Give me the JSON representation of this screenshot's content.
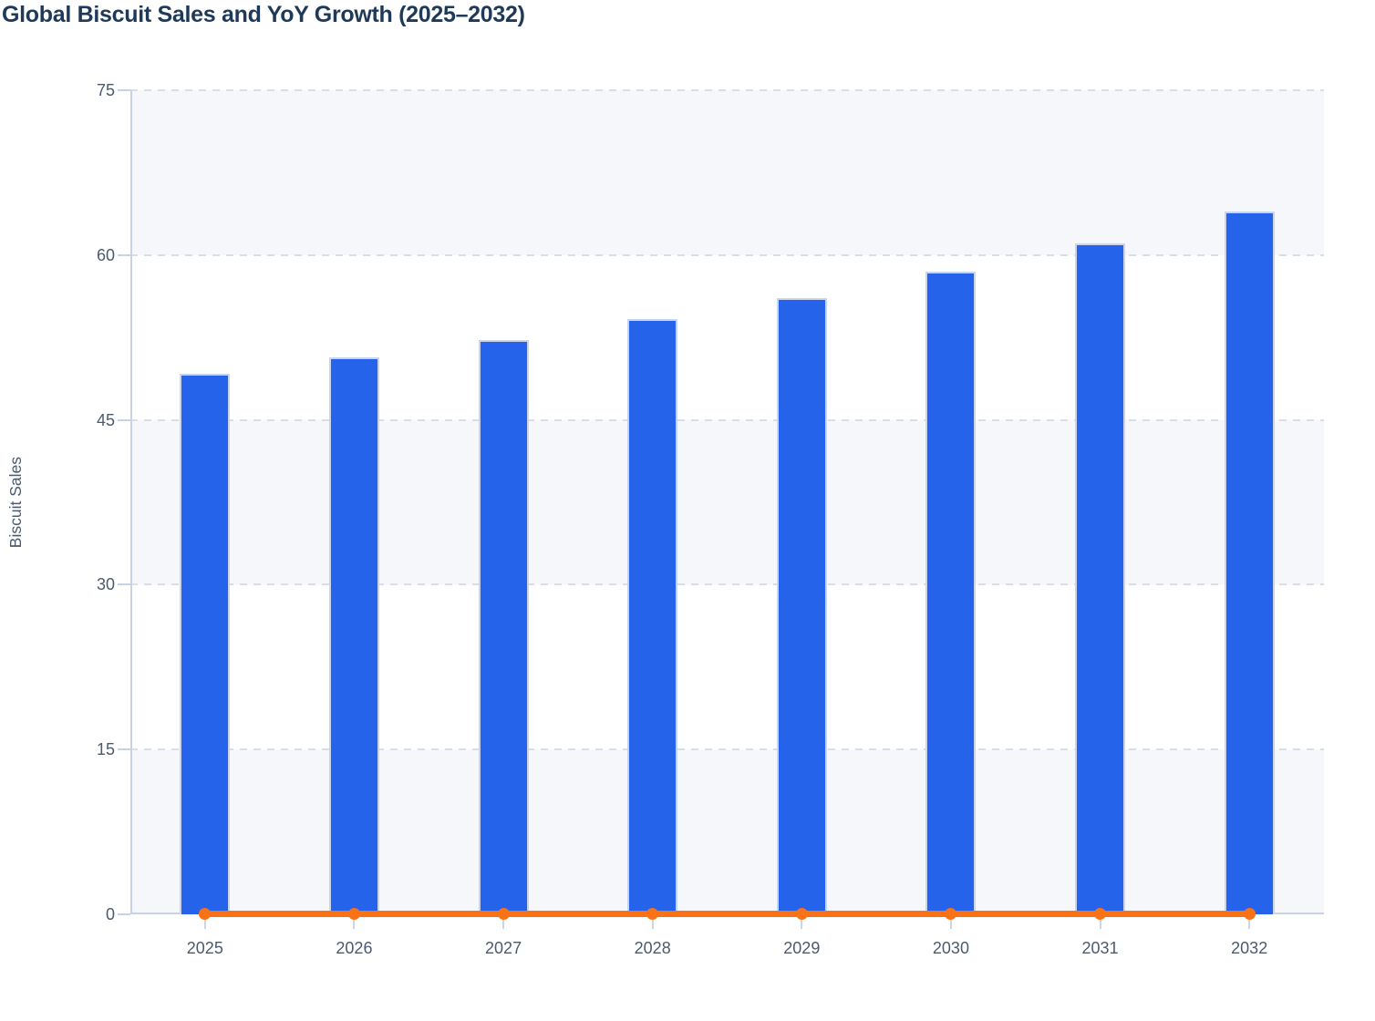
{
  "title": "Global Biscuit Sales and YoY Growth (2025–2032)",
  "y_axis": {
    "label": "Biscuit Sales",
    "tick_labels": [
      "75",
      "60",
      "45",
      "30",
      "15",
      "0"
    ]
  },
  "x_axis": {
    "tick_labels": [
      "2025",
      "2026",
      "2027",
      "2028",
      "2029",
      "2030",
      "2031",
      "2032"
    ]
  },
  "colors": {
    "bar_fill": "#2563eb",
    "bar_border": "#c9d4f2",
    "line": "#f97316",
    "title_text": "#1f3a58",
    "axis_text": "#4c5a6e",
    "axis_line": "#c8d2e4",
    "gridline": "#d9dde5",
    "band_fill": "#f6f7fa",
    "background": "#ffffff"
  },
  "chart_data": {
    "type": "bar",
    "title": "Global Biscuit Sales and YoY Growth (2025–2032)",
    "categories": [
      "2025",
      "2026",
      "2027",
      "2028",
      "2029",
      "2030",
      "2031",
      "2032"
    ],
    "series": [
      {
        "name": "Biscuit Sales",
        "type": "bar",
        "color": "#2563eb",
        "values": [
          49.2,
          50.7,
          52.3,
          54.2,
          56.1,
          58.5,
          61.1,
          64.0
        ]
      },
      {
        "name": "YoY Growth",
        "type": "line",
        "color": "#f97316",
        "values": [
          0,
          0.03,
          0.032,
          0.036,
          0.035,
          0.043,
          0.044,
          0.047
        ],
        "note": "plotted on same 0–75 axis, renders flat at baseline with round markers"
      }
    ],
    "xlabel": "",
    "ylabel": "Biscuit Sales",
    "ylim": [
      0,
      75
    ],
    "yticks": [
      0,
      15,
      30,
      45,
      60,
      75
    ],
    "grid": "dashed-horizontal",
    "background_bands": "alternating light rows between gridlines",
    "legend_position": "none"
  }
}
